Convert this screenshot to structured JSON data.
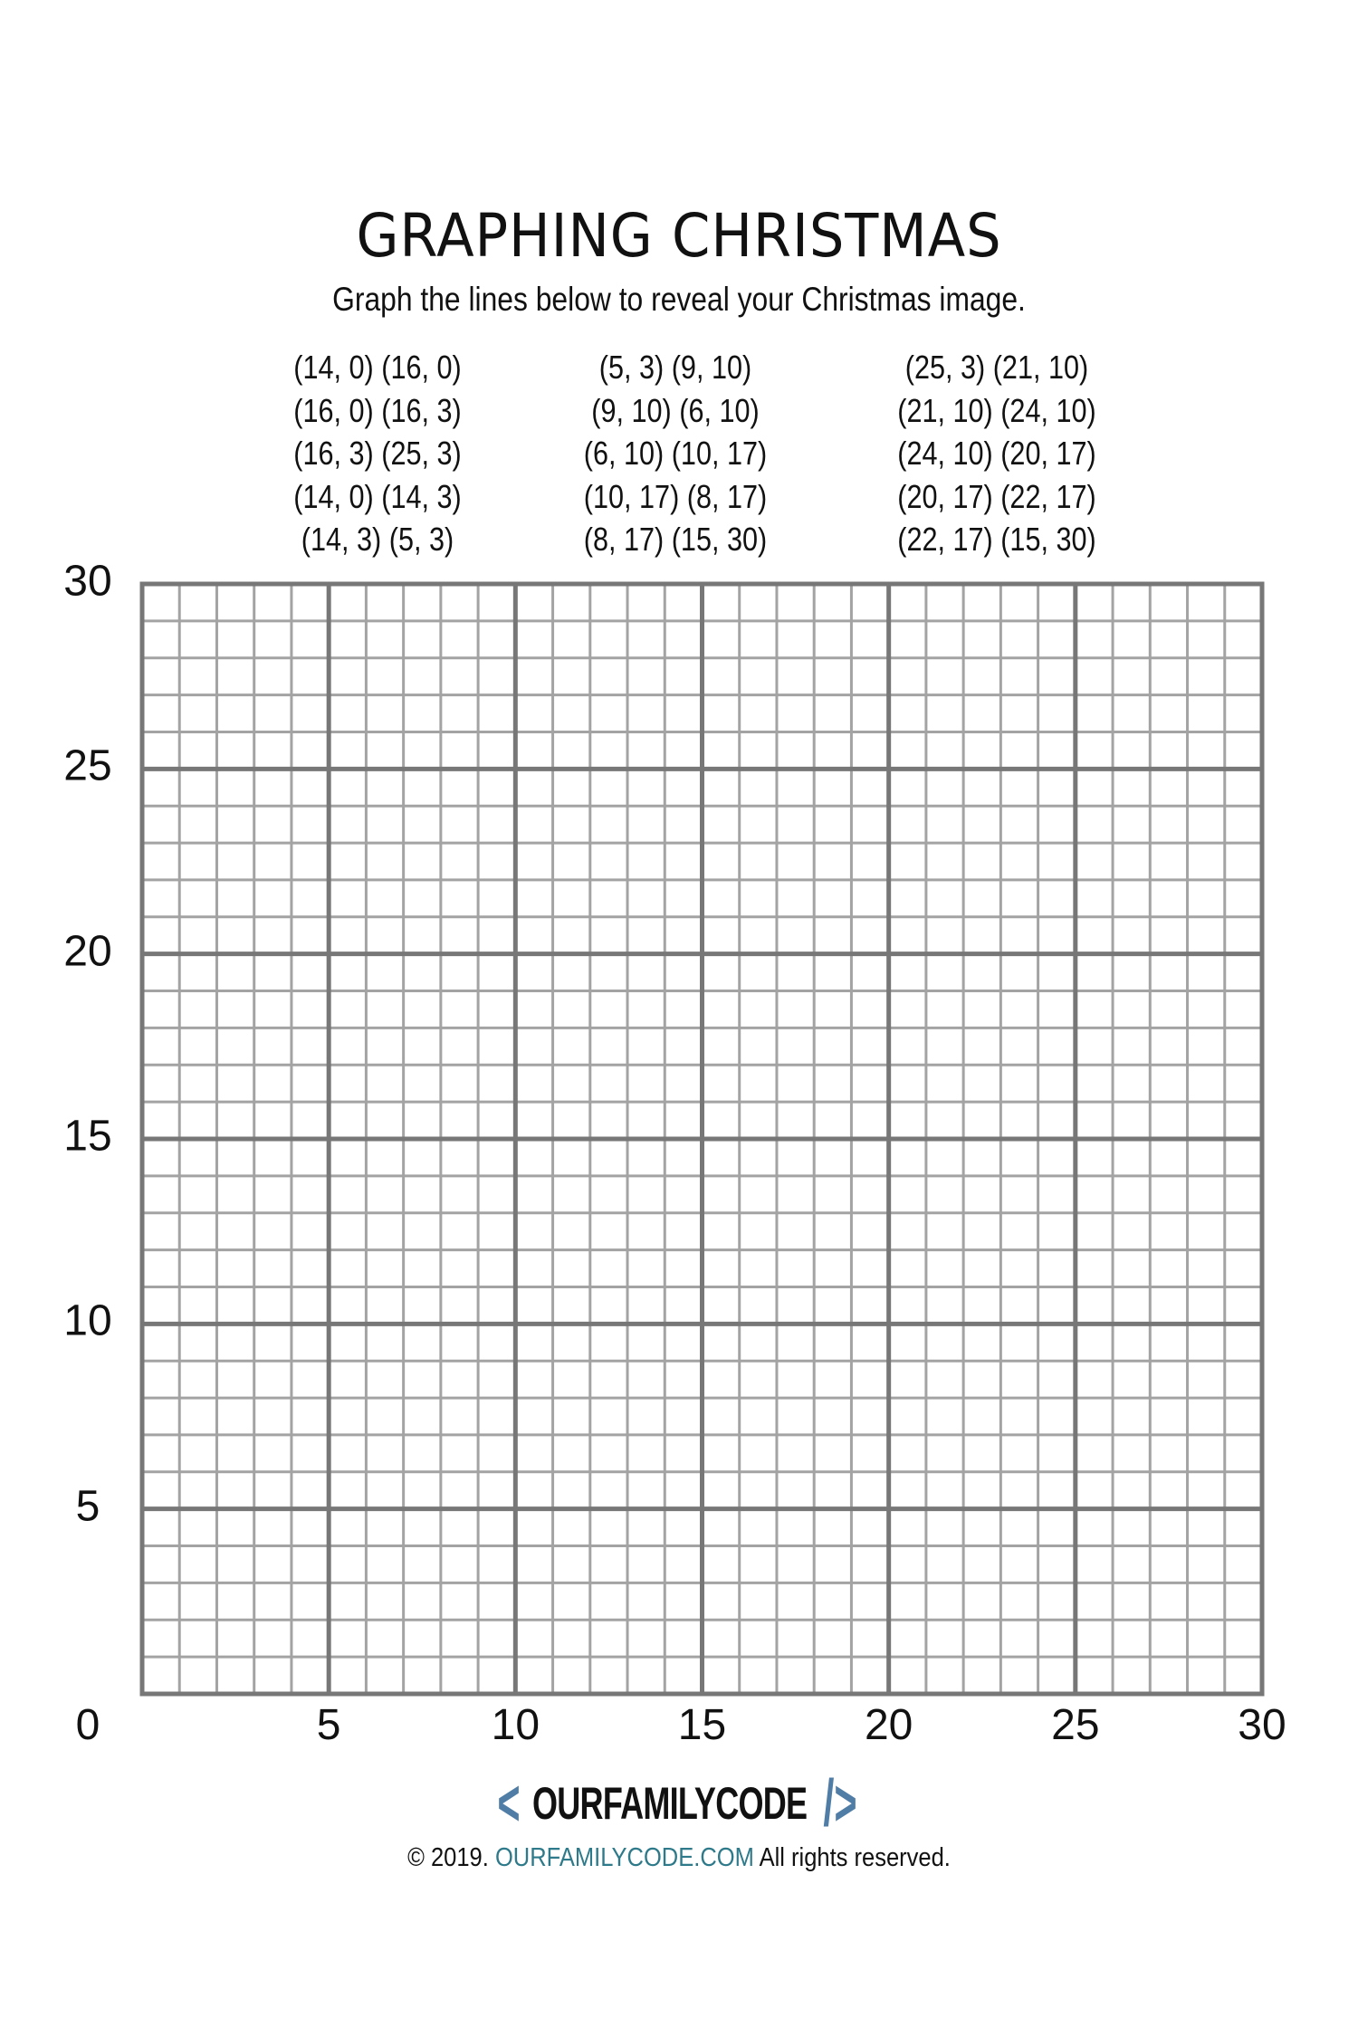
{
  "title": "GRAPHING CHRISTMAS",
  "subtitle": "Graph the lines below to reveal your Christmas image.",
  "coordinate_columns": [
    [
      "(14, 0) (16, 0)",
      "(16, 0) (16, 3)",
      "(16, 3) (25, 3)",
      "(14, 0) (14, 3)",
      "(14, 3) (5, 3)"
    ],
    [
      "(5, 3) (9, 10)",
      "(9, 10) (6, 10)",
      "(6, 10) (10, 17)",
      "(10, 17) (8, 17)",
      "(8, 17) (15, 30)"
    ],
    [
      "(25, 3) (21, 10)",
      "(21, 10) (24, 10)",
      "(24, 10) (20, 17)",
      "(20, 17) (22, 17)",
      "(22, 17) (15, 30)"
    ]
  ],
  "grid": {
    "xlim": [
      0,
      30
    ],
    "ylim": [
      0,
      30
    ],
    "minor_step": 1,
    "major_step": 5,
    "x_tick_labels": [
      "0",
      "5",
      "10",
      "15",
      "20",
      "25",
      "30"
    ],
    "y_tick_labels": [
      "30",
      "25",
      "20",
      "15",
      "10",
      "5"
    ],
    "minor_color": "#a3a3a3",
    "major_color": "#777777"
  },
  "footer": {
    "logo_left": "<",
    "logo_text": "OURFAMILYCODE",
    "logo_right": "/>",
    "copyright_prefix": "© 2019.",
    "copyright_site": "OURFAMILYCODE.COM",
    "copyright_suffix": "All rights reserved.",
    "brand_color": "#4f7da6"
  }
}
